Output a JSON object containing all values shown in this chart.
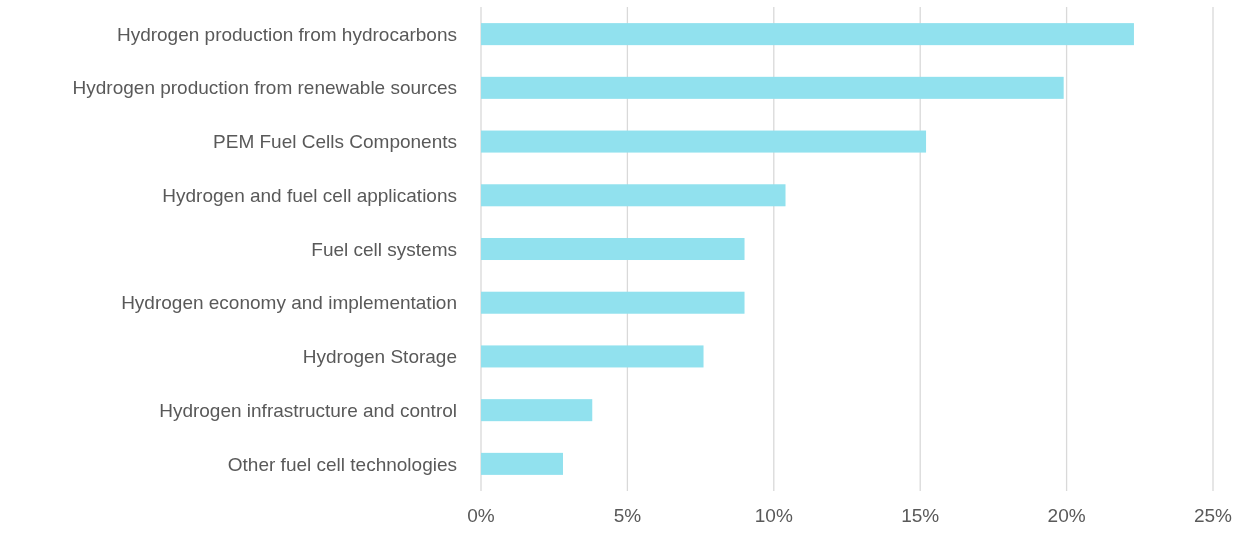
{
  "chart_data": {
    "type": "bar",
    "orientation": "horizontal",
    "categories": [
      "Hydrogen production from hydrocarbons",
      "Hydrogen production from renewable sources",
      "PEM Fuel Cells Components",
      "Hydrogen and fuel cell applications",
      "Fuel cell systems",
      "Hydrogen economy and implementation",
      "Hydrogen Storage",
      "Hydrogen infrastructure and control",
      "Other fuel cell technologies"
    ],
    "values": [
      22.3,
      19.9,
      15.2,
      10.4,
      9.0,
      9.0,
      7.6,
      3.8,
      2.8
    ],
    "color": "#91e1ee",
    "xlim": [
      0,
      25
    ],
    "xticks": [
      {
        "value": 0,
        "label": "0%"
      },
      {
        "value": 5,
        "label": "5%"
      },
      {
        "value": 10,
        "label": "10%"
      },
      {
        "value": 15,
        "label": "15%"
      },
      {
        "value": 20,
        "label": "20%"
      },
      {
        "value": 25,
        "label": "25%"
      }
    ],
    "grid": "x"
  }
}
